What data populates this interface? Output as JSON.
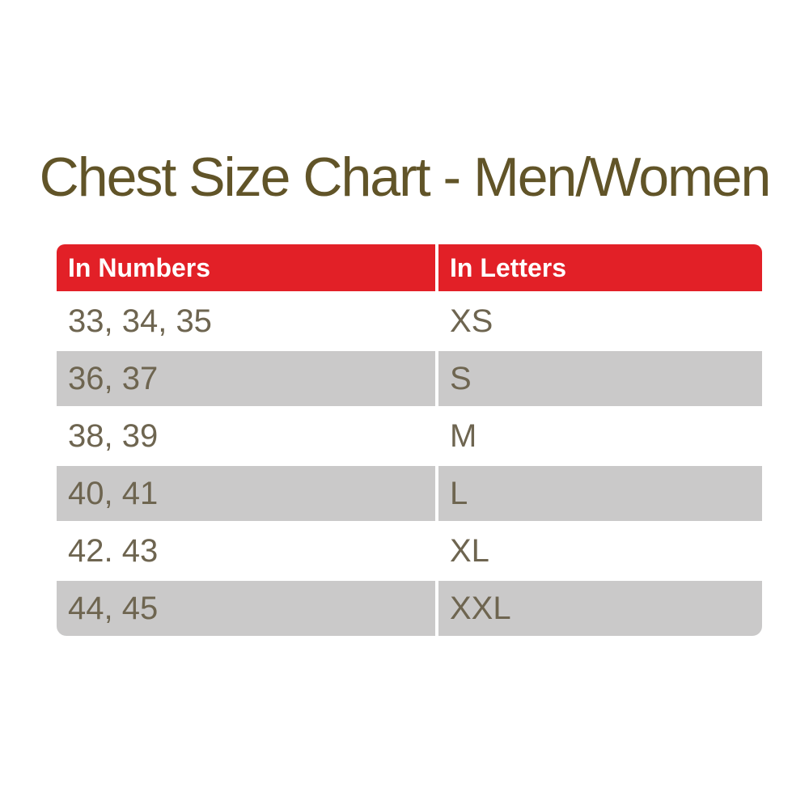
{
  "title": "Chest Size Chart - Men/Women",
  "colors": {
    "page_background": "#ffffff",
    "title_text": "#615428",
    "header_background": "#e22027",
    "header_text": "#ffffff",
    "row_text": "#6e6550",
    "row_background": "#ffffff",
    "row_alt_background": "#cac9c9"
  },
  "table": {
    "headers": [
      {
        "label": "In Numbers"
      },
      {
        "label": "In Letters"
      }
    ],
    "rows": [
      {
        "numbers": "33, 34, 35",
        "letters": "XS"
      },
      {
        "numbers": "36, 37",
        "letters": "S"
      },
      {
        "numbers": "38, 39",
        "letters": "M"
      },
      {
        "numbers": "40, 41",
        "letters": "L"
      },
      {
        "numbers": "42. 43",
        "letters": "XL"
      },
      {
        "numbers": "44, 45",
        "letters": "XXL"
      }
    ]
  },
  "chart_data": {
    "type": "table",
    "title": "Chest Size Chart - Men/Women",
    "columns": [
      "In Numbers",
      "In Letters"
    ],
    "rows": [
      [
        "33, 34, 35",
        "XS"
      ],
      [
        "36, 37",
        "S"
      ],
      [
        "38, 39",
        "M"
      ],
      [
        "40, 41",
        "L"
      ],
      [
        "42. 43",
        "XL"
      ],
      [
        "44, 45",
        "XXL"
      ]
    ],
    "layout": {
      "header_fill": "#e22027",
      "alternating_row_fill": "#cac9c9",
      "grid": false,
      "legend_position": "none"
    }
  }
}
